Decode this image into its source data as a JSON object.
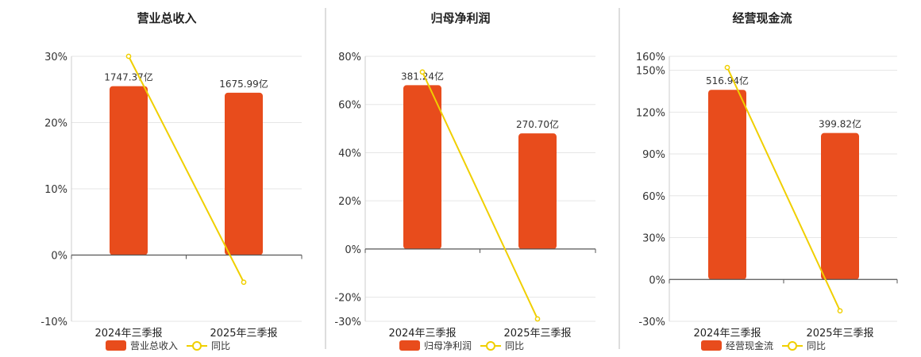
{
  "colors": {
    "bar": "#e84c1c",
    "line": "#f0cf00",
    "grid": "#e6e6e6",
    "axis": "#555555",
    "divider": "#bbbbbb"
  },
  "chart_data": [
    {
      "type": "bar",
      "title": "营业总收入",
      "categories": [
        "2024年三季报",
        "2025年三季报"
      ],
      "ylim": [
        -10,
        30
      ],
      "yticks": [
        -10,
        0,
        10,
        20,
        30
      ],
      "tick_labels": [
        "-10%",
        "0%",
        "10%",
        "20%",
        "30%"
      ],
      "series": [
        {
          "name": "营业总收入",
          "kind": "bar",
          "axis_values_pct": [
            25.5,
            24.5
          ],
          "labels": [
            "1747.37亿",
            "1675.99亿"
          ]
        },
        {
          "name": "同比",
          "kind": "line",
          "values": [
            30.0,
            -4.1
          ]
        }
      ],
      "legend": [
        "营业总收入",
        "同比"
      ],
      "legend_position": "bottom"
    },
    {
      "type": "bar",
      "title": "归母净利润",
      "categories": [
        "2024年三季报",
        "2025年三季报"
      ],
      "ylim": [
        -30,
        80
      ],
      "yticks": [
        -30,
        -20,
        0,
        20,
        40,
        60,
        80
      ],
      "tick_labels": [
        "-30%",
        "-20%",
        "0%",
        "20%",
        "40%",
        "60%",
        "80%"
      ],
      "series": [
        {
          "name": "归母净利润",
          "kind": "bar",
          "axis_values_pct": [
            68,
            48
          ],
          "labels": [
            "381.24亿",
            "270.70亿"
          ]
        },
        {
          "name": "同比",
          "kind": "line",
          "values": [
            73.5,
            -29.0
          ]
        }
      ],
      "legend": [
        "归母净利润",
        "同比"
      ],
      "legend_position": "bottom"
    },
    {
      "type": "bar",
      "title": "经营现金流",
      "categories": [
        "2024年三季报",
        "2025年三季报"
      ],
      "ylim": [
        -30,
        160
      ],
      "yticks": [
        -30,
        0,
        30,
        60,
        90,
        120,
        150,
        160
      ],
      "tick_labels": [
        "-30%",
        "0%",
        "30%",
        "60%",
        "90%",
        "120%",
        "150%",
        "160%"
      ],
      "series": [
        {
          "name": "经营现金流",
          "kind": "bar",
          "axis_values_pct": [
            136,
            105
          ],
          "labels": [
            "516.94亿",
            "399.82亿"
          ]
        },
        {
          "name": "同比",
          "kind": "line",
          "values": [
            152.0,
            -22.5
          ]
        }
      ],
      "legend": [
        "经营现金流",
        "同比"
      ],
      "legend_position": "bottom"
    }
  ]
}
